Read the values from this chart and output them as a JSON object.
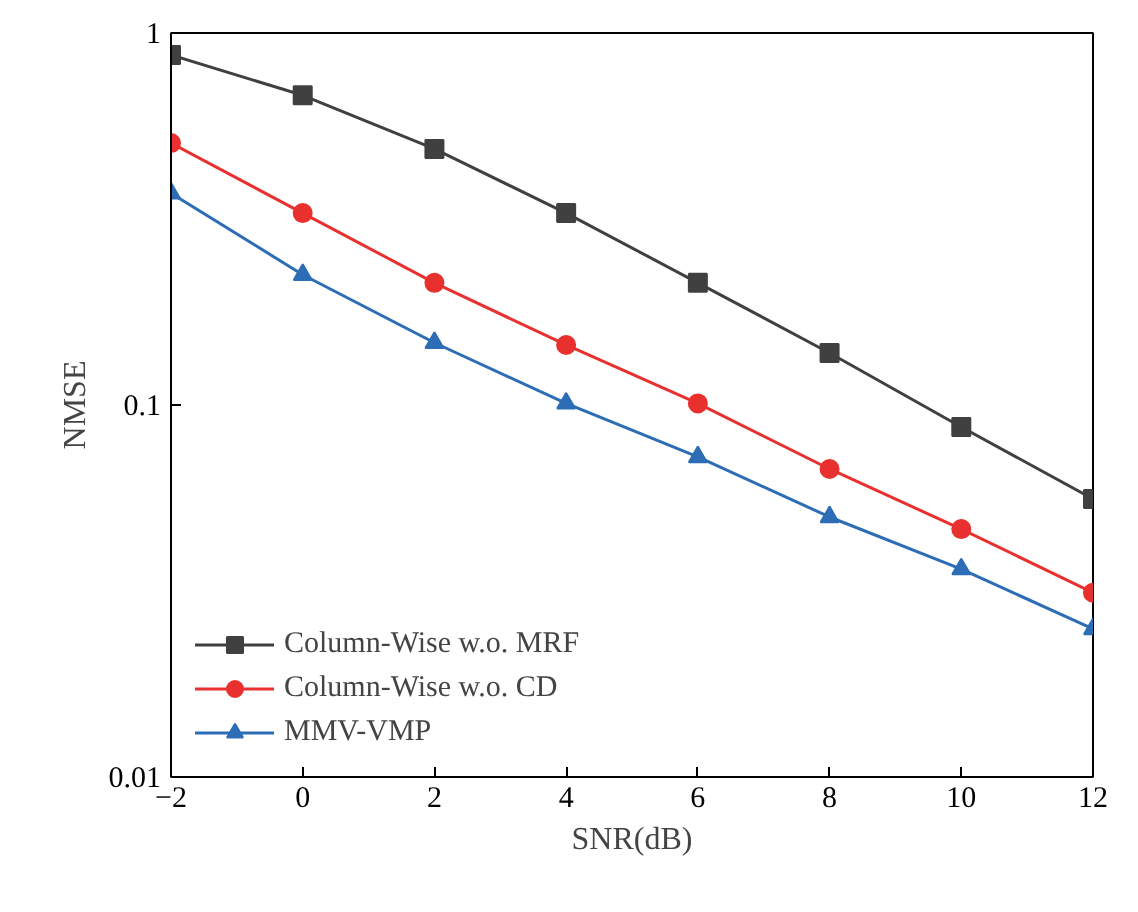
{
  "chart_data": {
    "type": "line",
    "xlabel": "SNR(dB)",
    "ylabel": "NMSE",
    "log": "y",
    "grid": false,
    "legend": "bottom left",
    "line_style": "solid",
    "x": [
      -2,
      0,
      2,
      4,
      6,
      8,
      10,
      12
    ],
    "xlim": [
      -2,
      12
    ],
    "xticks": [
      {
        "value": -2,
        "label": "−2"
      },
      0,
      2,
      4,
      6,
      8,
      10,
      12
    ],
    "ylim": [
      0.01,
      1
    ],
    "yticks": [
      0.01,
      0.1,
      1
    ],
    "series": [
      {
        "name": "Column-Wise w.o. MRF",
        "color": "#404040",
        "marker": "square",
        "values": [
          0.873,
          0.68,
          0.488,
          0.328,
          0.213,
          0.138,
          0.0873,
          0.0559
        ]
      },
      {
        "name": "Column-Wise w.o. CD",
        "color": "#e8312e",
        "marker": "circle",
        "values": [
          0.506,
          0.328,
          0.213,
          0.145,
          0.101,
          0.0673,
          0.0464,
          0.0313
        ]
      },
      {
        "name": "MMV-VMP",
        "color": "#2c6db5",
        "marker": "triangle",
        "values": [
          0.371,
          0.224,
          0.147,
          0.101,
          0.0725,
          0.05,
          0.0362,
          0.025
        ]
      }
    ]
  }
}
